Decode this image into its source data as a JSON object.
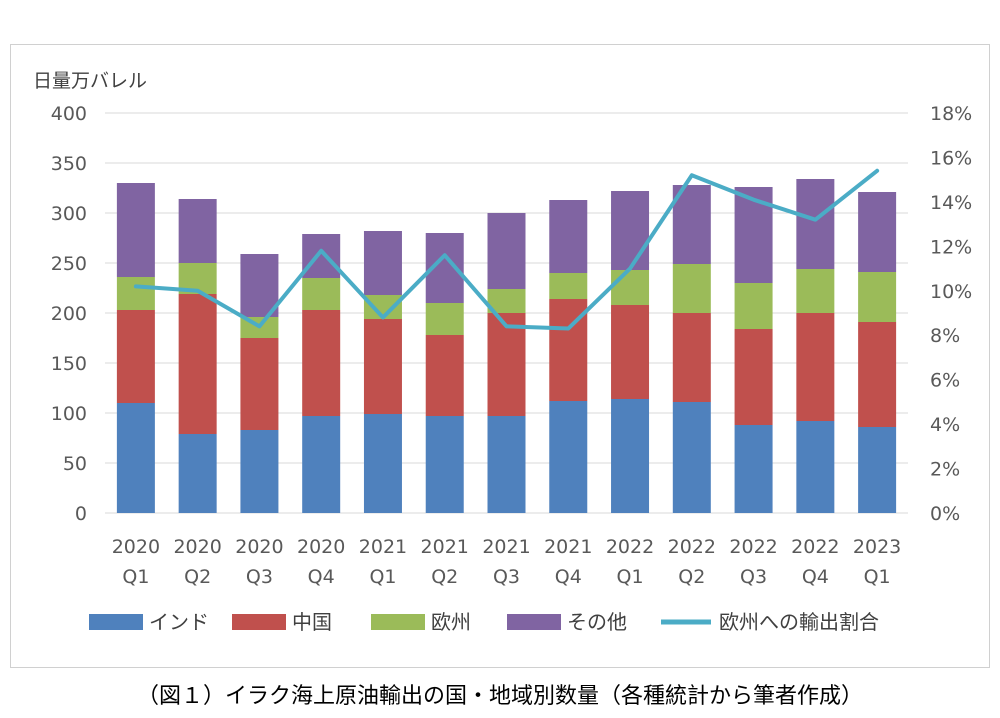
{
  "caption": "（図１）イラク海上原油輸出の国・地域別数量（各種統計から筆者作成）",
  "chart_data": {
    "type": "bar",
    "stacked": true,
    "ylabel": "日量万バレル",
    "ylim": [
      0,
      400
    ],
    "y_ticks": [
      "0",
      "50",
      "100",
      "150",
      "200",
      "250",
      "300",
      "350",
      "400"
    ],
    "y2lim": [
      0,
      18
    ],
    "y2_ticks": [
      "0%",
      "2%",
      "4%",
      "6%",
      "8%",
      "10%",
      "12%",
      "14%",
      "16%",
      "18%"
    ],
    "categories": [
      [
        "2020",
        "Q1"
      ],
      [
        "2020",
        "Q2"
      ],
      [
        "2020",
        "Q3"
      ],
      [
        "2020",
        "Q4"
      ],
      [
        "2021",
        "Q1"
      ],
      [
        "2021",
        "Q2"
      ],
      [
        "2021",
        "Q3"
      ],
      [
        "2021",
        "Q4"
      ],
      [
        "2022",
        "Q1"
      ],
      [
        "2022",
        "Q2"
      ],
      [
        "2022",
        "Q3"
      ],
      [
        "2022",
        "Q4"
      ],
      [
        "2023",
        "Q1"
      ]
    ],
    "series": [
      {
        "name": "インド",
        "color": "#4f81bd",
        "values": [
          110,
          79,
          83,
          97,
          99,
          97,
          97,
          112,
          114,
          111,
          88,
          92,
          86
        ]
      },
      {
        "name": "中国",
        "color": "#c0504d",
        "values": [
          93,
          140,
          92,
          106,
          95,
          81,
          103,
          102,
          94,
          89,
          96,
          108,
          105
        ]
      },
      {
        "name": "欧州",
        "color": "#9bbb59",
        "values": [
          33,
          31,
          21,
          32,
          24,
          32,
          24,
          26,
          35,
          49,
          46,
          44,
          50
        ]
      },
      {
        "name": "その他",
        "color": "#8064a2",
        "values": [
          94,
          64,
          63,
          44,
          64,
          70,
          76,
          73,
          79,
          79,
          96,
          90,
          80
        ]
      }
    ],
    "line_series": {
      "name": "欧州への輸出割合",
      "color": "#4bacc6",
      "axis": "right",
      "values": [
        10.2,
        10.0,
        8.4,
        11.8,
        8.8,
        11.6,
        8.4,
        8.3,
        11.0,
        15.2,
        14.1,
        13.2,
        15.4
      ]
    },
    "legend": "bottom"
  }
}
